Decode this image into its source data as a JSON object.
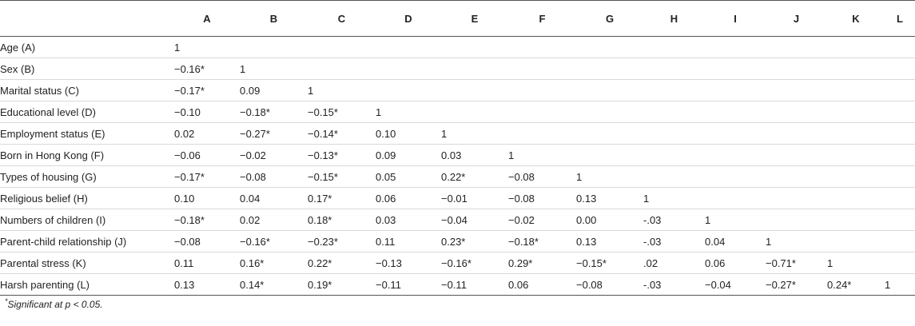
{
  "table": {
    "columns": [
      "A",
      "B",
      "C",
      "D",
      "E",
      "F",
      "G",
      "H",
      "I",
      "J",
      "K",
      "L"
    ],
    "rows": [
      {
        "label": "Age (A)",
        "values": [
          "1",
          "",
          "",
          "",
          "",
          "",
          "",
          "",
          "",
          "",
          "",
          ""
        ]
      },
      {
        "label": "Sex (B)",
        "values": [
          "−0.16*",
          "1",
          "",
          "",
          "",
          "",
          "",
          "",
          "",
          "",
          "",
          ""
        ]
      },
      {
        "label": "Marital status (C)",
        "values": [
          "−0.17*",
          "0.09",
          "1",
          "",
          "",
          "",
          "",
          "",
          "",
          "",
          "",
          ""
        ]
      },
      {
        "label": "Educational level (D)",
        "values": [
          "−0.10",
          "−0.18*",
          "−0.15*",
          "1",
          "",
          "",
          "",
          "",
          "",
          "",
          "",
          ""
        ]
      },
      {
        "label": "Employment status (E)",
        "values": [
          "0.02",
          "−0.27*",
          "−0.14*",
          "0.10",
          "1",
          "",
          "",
          "",
          "",
          "",
          "",
          ""
        ]
      },
      {
        "label": "Born in Hong Kong (F)",
        "values": [
          "−0.06",
          "−0.02",
          "−0.13*",
          "0.09",
          "0.03",
          "1",
          "",
          "",
          "",
          "",
          "",
          ""
        ]
      },
      {
        "label": "Types of housing (G)",
        "values": [
          "−0.17*",
          "−0.08",
          "−0.15*",
          "0.05",
          "0.22*",
          "−0.08",
          "1",
          "",
          "",
          "",
          "",
          ""
        ]
      },
      {
        "label": "Religious belief (H)",
        "values": [
          "0.10",
          "0.04",
          "0.17*",
          "0.06",
          "−0.01",
          "−0.08",
          "0.13",
          "1",
          "",
          "",
          "",
          ""
        ]
      },
      {
        "label": "Numbers of children (I)",
        "values": [
          "−0.18*",
          "0.02",
          "0.18*",
          "0.03",
          "−0.04",
          "−0.02",
          "0.00",
          "-.03",
          "1",
          "",
          "",
          ""
        ]
      },
      {
        "label": "Parent-child relationship (J)",
        "values": [
          "−0.08",
          "−0.16*",
          "−0.23*",
          "0.11",
          "0.23*",
          "−0.18*",
          "0.13",
          "-.03",
          "0.04",
          "1",
          "",
          ""
        ]
      },
      {
        "label": "Parental stress (K)",
        "values": [
          "0.11",
          "0.16*",
          "0.22*",
          "−0.13",
          "−0.16*",
          "0.29*",
          "−0.15*",
          ".02",
          "0.06",
          "−0.71*",
          "1",
          ""
        ]
      },
      {
        "label": "Harsh parenting (L)",
        "values": [
          "0.13",
          "0.14*",
          "0.19*",
          "−0.11",
          "−0.11",
          "0.06",
          "−0.08",
          "-.03",
          "−0.04",
          "−0.27*",
          "0.24*",
          "1"
        ]
      }
    ]
  },
  "footnote": {
    "marker": "*",
    "text": "Significant at p < 0.05."
  }
}
